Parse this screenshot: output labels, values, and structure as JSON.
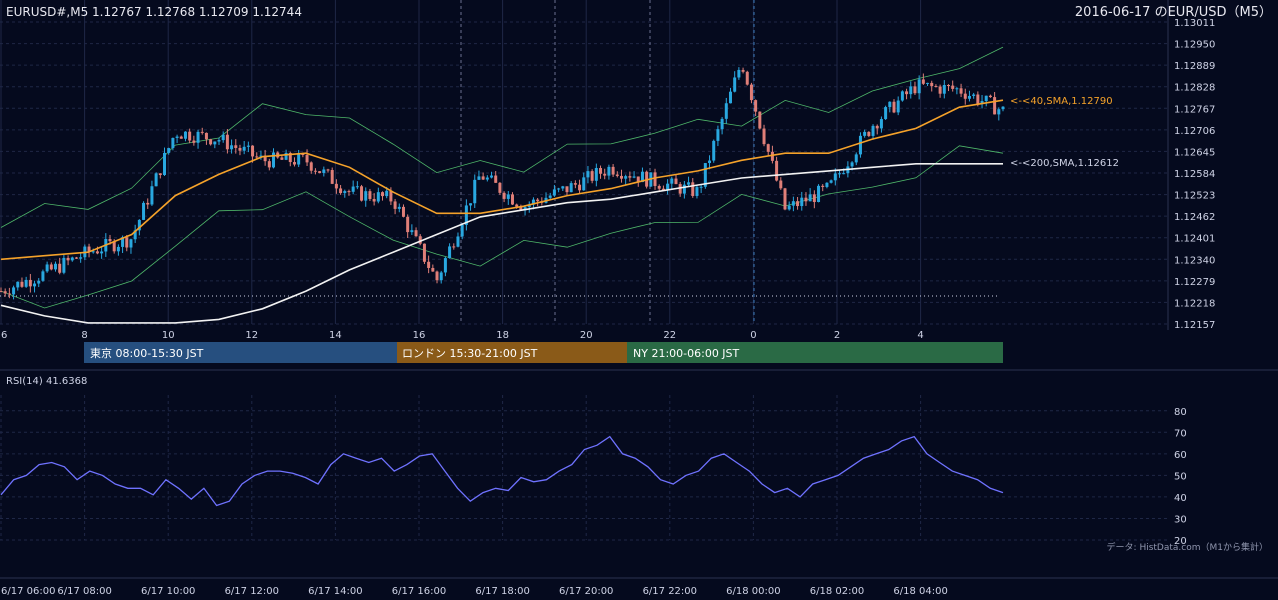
{
  "header": {
    "symbol_quote": "EURUSD#,M5 1.12767 1.12768 1.12709 1.12744",
    "date_pair": "2016-06-17 のEUR/USD（M5）"
  },
  "colors": {
    "background": "#050a1e",
    "grid": "#1f2746",
    "up_candle": "#29a8e0",
    "down_candle": "#e07f78",
    "sma40": "#f5a22a",
    "sma200": "#f2f2f2",
    "bollinger": "#4fb86a",
    "rsi": "#6f72ff",
    "tokyo": "#264f7f",
    "london": "#8a5a18",
    "ny": "#2a6a45"
  },
  "price_axis_labels": [
    "1.13011",
    "1.12950",
    "1.12889",
    "1.12828",
    "1.12767",
    "1.12706",
    "1.12645",
    "1.12584",
    "1.12523",
    "1.12462",
    "1.12401",
    "1.12340",
    "1.12279",
    "1.12218",
    "1.12157"
  ],
  "hour_labels": [
    "6",
    "8",
    "10",
    "12",
    "14",
    "16",
    "18",
    "20",
    "22",
    "0",
    "2",
    "4"
  ],
  "sessions": [
    {
      "label": "東京 08:00-15:30 JST"
    },
    {
      "label": "ロンドン 15:30-21:00 JST"
    },
    {
      "label": "NY 21:00-06:00 JST"
    }
  ],
  "indicators": {
    "sma40_label": "<-<40,SMA,1.12790",
    "sma200_label": "<-<200,SMA,1.12612"
  },
  "rsi": {
    "title": "RSI(14) 41.6368",
    "axis_labels": [
      "80",
      "70",
      "60",
      "50",
      "40",
      "30",
      "20"
    ]
  },
  "time_axis_labels": [
    "6/17 06:00",
    "6/17 08:00",
    "6/17 10:00",
    "6/17 12:00",
    "6/17 14:00",
    "6/17 16:00",
    "6/17 18:00",
    "6/17 20:00",
    "6/17 22:00",
    "6/18 00:00",
    "6/18 02:00",
    "6/18 04:00"
  ],
  "credit": "データ: HistData.com（M1から集計）",
  "chart_data": {
    "type": "line",
    "title": "2016-06-17 のEUR/USD（M5）",
    "price_ylim": [
      1.12157,
      1.13011
    ],
    "hours_x": [
      6,
      7,
      8,
      9,
      10,
      11,
      12,
      13,
      14,
      15,
      16,
      17,
      18,
      19,
      20,
      21,
      22,
      23,
      24,
      25,
      26,
      27,
      28,
      29
    ],
    "close_approx": [
      1.1225,
      1.123,
      1.1236,
      1.124,
      1.127,
      1.1268,
      1.1262,
      1.1262,
      1.1253,
      1.1251,
      1.1228,
      1.1258,
      1.1249,
      1.1254,
      1.126,
      1.1256,
      1.1253,
      1.129,
      1.1248,
      1.1254,
      1.1272,
      1.1283,
      1.1282,
      1.1276
    ],
    "series": [
      {
        "name": "40,SMA",
        "last": 1.1279,
        "values": [
          1.1234,
          1.1235,
          1.1236,
          1.1241,
          1.1252,
          1.1258,
          1.1263,
          1.1264,
          1.126,
          1.1253,
          1.1247,
          1.1247,
          1.1249,
          1.1252,
          1.1254,
          1.1257,
          1.1259,
          1.1262,
          1.1264,
          1.1264,
          1.1268,
          1.1271,
          1.1277,
          1.1279
        ]
      },
      {
        "name": "200,SMA",
        "last": 1.12612,
        "values": [
          1.1221,
          1.1218,
          1.1216,
          1.1216,
          1.1216,
          1.1217,
          1.122,
          1.1225,
          1.1231,
          1.1236,
          1.1241,
          1.1246,
          1.1248,
          1.125,
          1.1251,
          1.1253,
          1.1255,
          1.1257,
          1.1258,
          1.1259,
          1.126,
          1.1261,
          1.1261,
          1.1261
        ]
      }
    ],
    "rsi_ylim": [
      20,
      85
    ],
    "rsi_values": [
      41,
      48,
      50,
      55,
      56,
      54,
      48,
      52,
      50,
      46,
      44,
      44,
      41,
      48,
      44,
      39,
      44,
      36,
      38,
      46,
      50,
      52,
      52,
      51,
      49,
      46,
      55,
      60,
      58,
      56,
      58,
      52,
      55,
      59,
      60,
      52,
      44,
      38,
      42,
      44,
      43,
      49,
      47,
      48,
      52,
      55,
      62,
      64,
      68,
      60,
      58,
      54,
      48,
      46,
      50,
      52,
      58,
      60,
      56,
      52,
      46,
      42,
      44,
      40,
      46,
      48,
      50,
      54,
      58,
      60,
      62,
      66,
      68,
      60,
      56,
      52,
      50,
      48,
      44,
      42
    ]
  }
}
